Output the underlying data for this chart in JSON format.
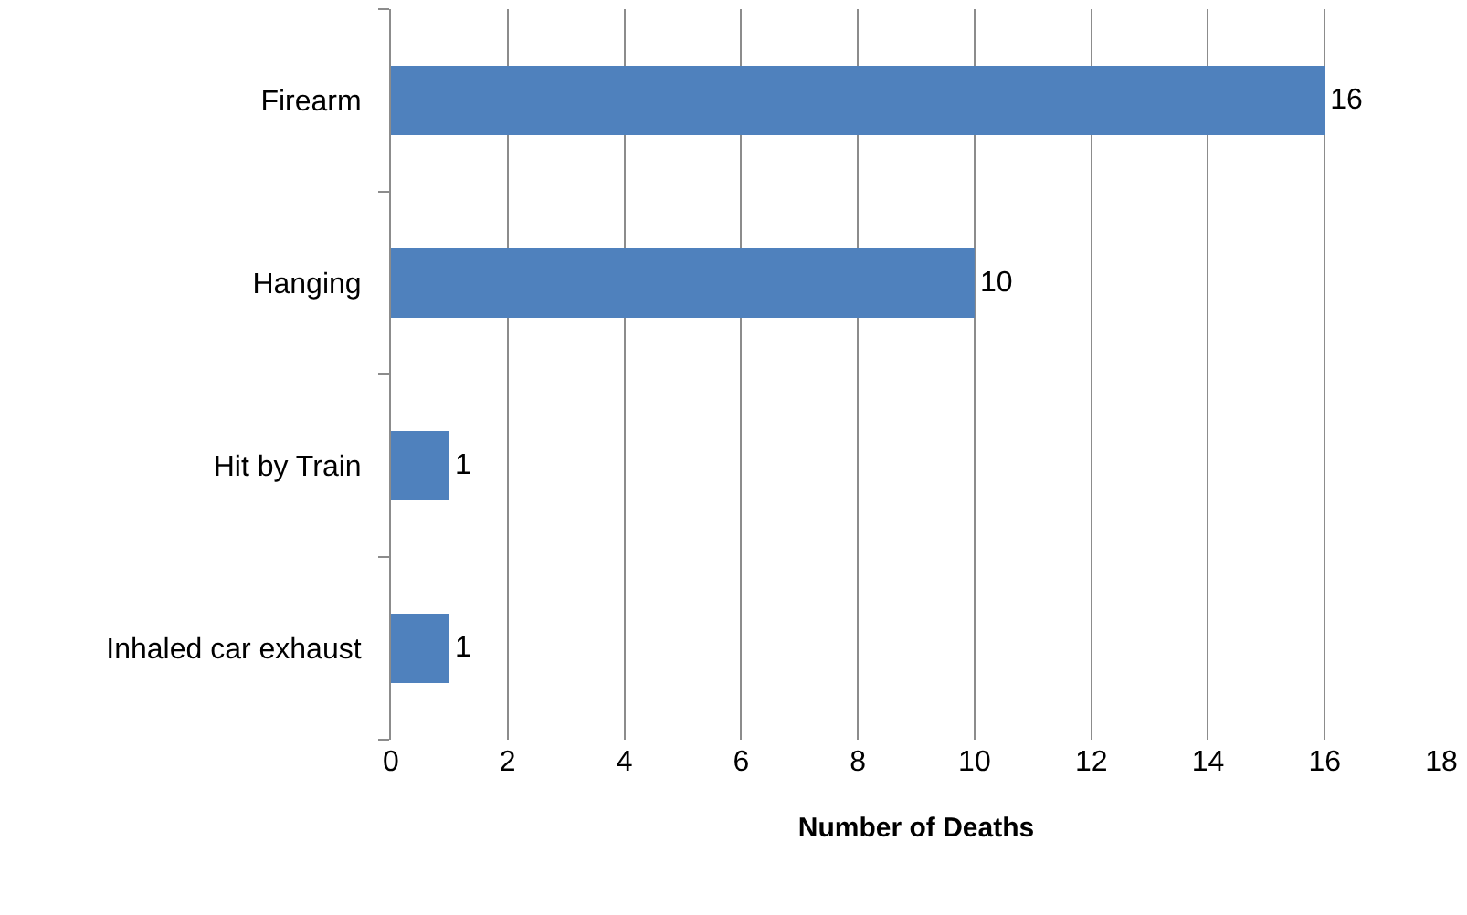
{
  "chart_data": {
    "type": "bar",
    "orientation": "horizontal",
    "xlabel": "Number of Deaths",
    "categories": [
      "Firearm",
      "Hanging",
      "Hit by Train",
      "Inhaled car exhaust"
    ],
    "values": [
      16,
      10,
      1,
      1
    ],
    "color": "#4f81bd",
    "data_labels": true,
    "xlim": [
      0,
      18
    ],
    "xticks": [
      0,
      2,
      4,
      6,
      8,
      10,
      12,
      14,
      16,
      18
    ],
    "grid": "x",
    "legend": false
  }
}
